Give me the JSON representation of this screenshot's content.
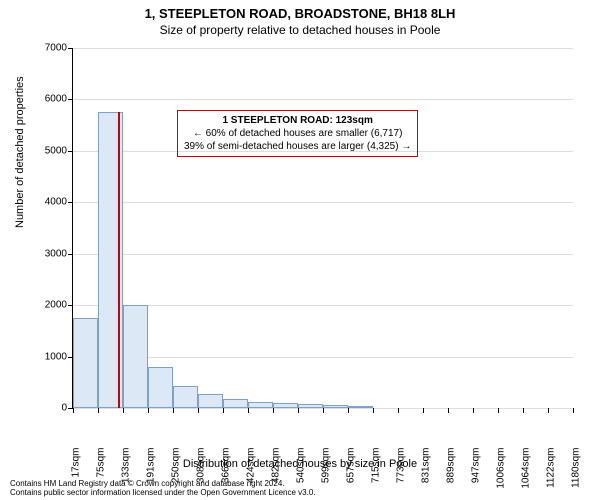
{
  "title": "1, STEEPLETON ROAD, BROADSTONE, BH18 8LH",
  "subtitle": "Size of property relative to detached houses in Poole",
  "ylabel": "Number of detached properties",
  "xlabel": "Distribution of detached houses by size in Poole",
  "chart": {
    "type": "histogram",
    "ylim": [
      0,
      7000
    ],
    "yticks": [
      0,
      1000,
      2000,
      3000,
      4000,
      5000,
      6000,
      7000
    ],
    "xtick_labels": [
      "17sqm",
      "75sqm",
      "133sqm",
      "191sqm",
      "250sqm",
      "308sqm",
      "366sqm",
      "424sqm",
      "482sqm",
      "540sqm",
      "599sqm",
      "657sqm",
      "715sqm",
      "773sqm",
      "831sqm",
      "889sqm",
      "947sqm",
      "1006sqm",
      "1064sqm",
      "1122sqm",
      "1180sqm"
    ],
    "bars": [
      1750,
      5750,
      2000,
      800,
      420,
      270,
      180,
      120,
      100,
      80,
      60,
      40,
      0,
      0,
      0,
      0,
      0,
      0,
      0,
      0
    ],
    "bar_fill": "#dde8f6",
    "bar_border": "#7ea1c8",
    "grid_color": "#dddddd",
    "background": "#ffffff",
    "marker_color": "#cc0000",
    "marker_index": 1.83,
    "marker_height": 5750
  },
  "annotation": {
    "title": "1 STEEPLETON ROAD: 123sqm",
    "line1": "← 60% of detached houses are smaller (6,717)",
    "line2": "39% of semi-detached houses are larger (4,325) →",
    "border_color": "#cc0000"
  },
  "footer": {
    "line1": "Contains HM Land Registry data © Crown copyright and database right 2024.",
    "line2": "Contains public sector information licensed under the Open Government Licence v3.0."
  }
}
